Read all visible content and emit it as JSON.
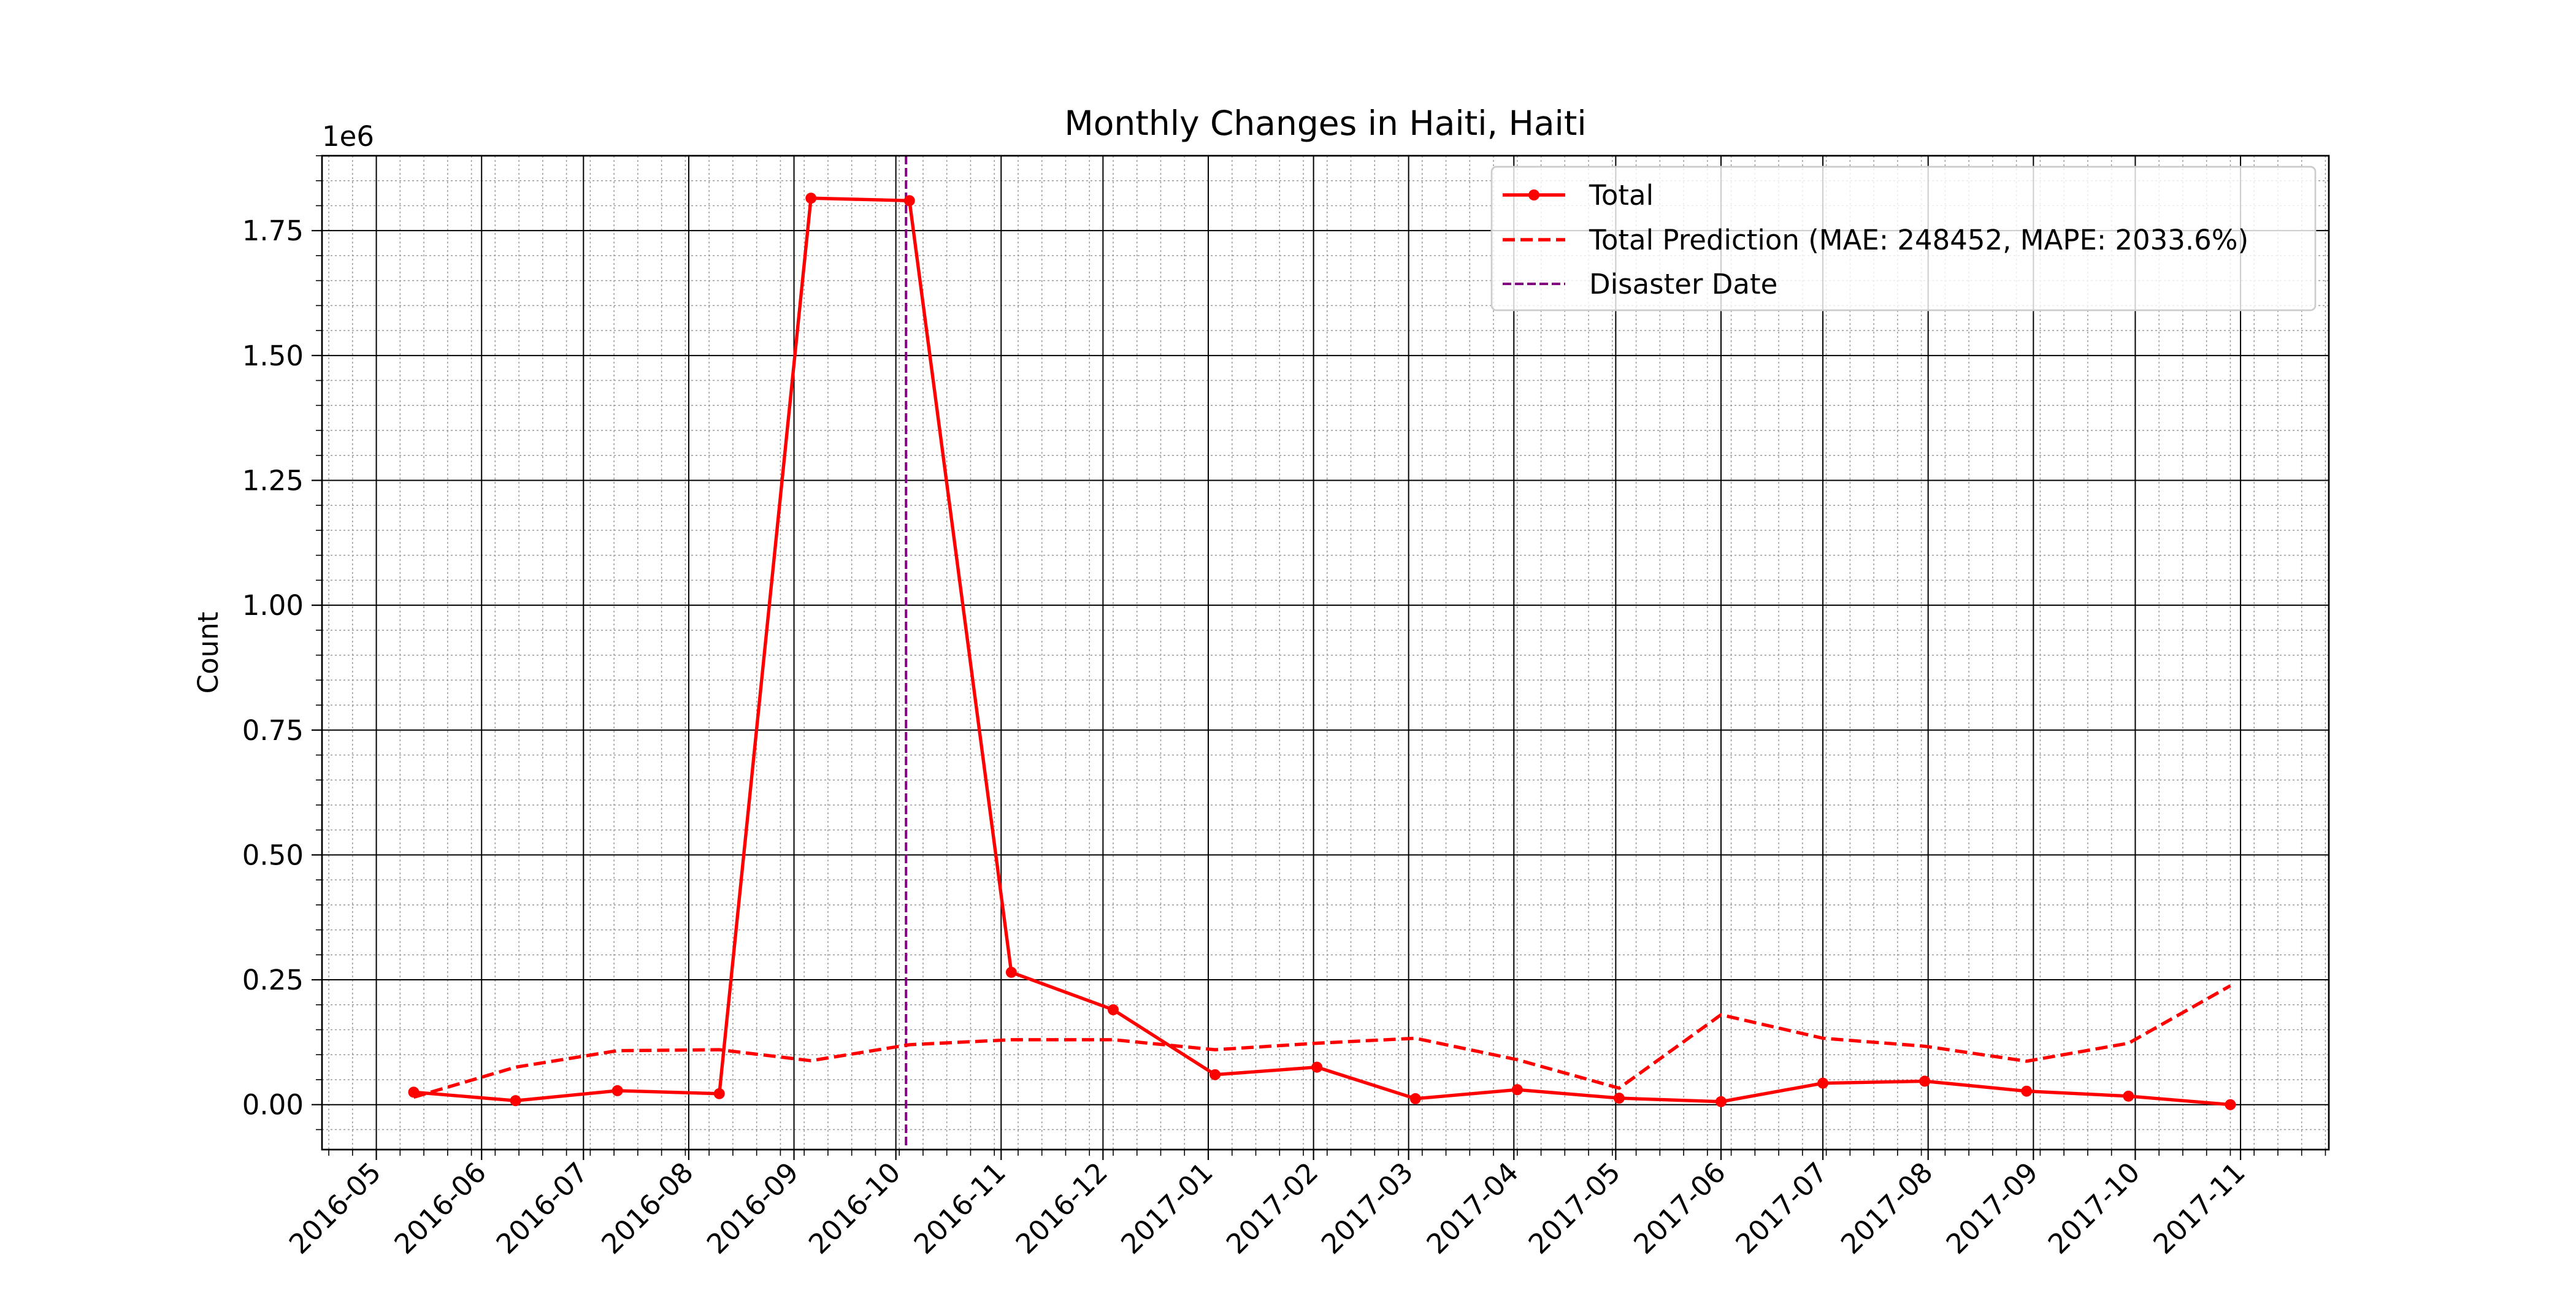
{
  "chart_data": {
    "type": "line",
    "title": "Monthly Changes in Haiti, Haiti",
    "xlabel": "",
    "ylabel": "Count",
    "y_offset_label": "1e6",
    "y_multiplier": 1000000,
    "ylim": [
      -0.09,
      1.9
    ],
    "xlim": [
      "2016-04-15",
      "2017-11-27"
    ],
    "y_ticks": [
      0.0,
      0.25,
      0.5,
      0.75,
      1.0,
      1.25,
      1.5,
      1.75
    ],
    "y_tick_labels": [
      "0.00",
      "0.25",
      "0.50",
      "0.75",
      "1.00",
      "1.25",
      "1.50",
      "1.75"
    ],
    "x_ticks": [
      "2016-05-01",
      "2016-06-01",
      "2016-07-01",
      "2016-08-01",
      "2016-09-01",
      "2016-10-01",
      "2016-11-01",
      "2016-12-01",
      "2017-01-01",
      "2017-02-01",
      "2017-03-01",
      "2017-04-01",
      "2017-05-01",
      "2017-06-01",
      "2017-07-01",
      "2017-08-01",
      "2017-09-01",
      "2017-10-01",
      "2017-11-01"
    ],
    "x_tick_labels": [
      "2016-05",
      "2016-06",
      "2016-07",
      "2016-08",
      "2016-09",
      "2016-10",
      "2016-11",
      "2016-12",
      "2017-01",
      "2017-02",
      "2017-03",
      "2017-04",
      "2017-05",
      "2017-06",
      "2017-07",
      "2017-08",
      "2017-09",
      "2017-10",
      "2017-11"
    ],
    "grid": true,
    "minor_grid": true,
    "legend_position": "top-right",
    "disaster": {
      "name": "Disaster Date",
      "date": "2016-10-04",
      "color": "#800080"
    },
    "series": [
      {
        "name": "Total",
        "style": "solid-markers",
        "color": "#ff0000",
        "points": [
          [
            "2016-05-12",
            0.025
          ],
          [
            "2016-06-11",
            0.008
          ],
          [
            "2016-07-11",
            0.028
          ],
          [
            "2016-08-10",
            0.022
          ],
          [
            "2016-09-06",
            1.815
          ],
          [
            "2016-10-05",
            1.81
          ],
          [
            "2016-11-04",
            0.265
          ],
          [
            "2016-12-04",
            0.19
          ],
          [
            "2017-01-03",
            0.06
          ],
          [
            "2017-02-02",
            0.075
          ],
          [
            "2017-03-03",
            0.012
          ],
          [
            "2017-04-02",
            0.03
          ],
          [
            "2017-05-02",
            0.013
          ],
          [
            "2017-06-01",
            0.006
          ],
          [
            "2017-07-01",
            0.043
          ],
          [
            "2017-07-31",
            0.047
          ],
          [
            "2017-08-30",
            0.027
          ],
          [
            "2017-09-29",
            0.017
          ],
          [
            "2017-10-29",
            0.0
          ]
        ]
      },
      {
        "name": "Total Prediction (MAE: 248452, MAPE: 2033.6%)",
        "style": "dashed",
        "color": "#ff0000",
        "points": [
          [
            "2016-05-12",
            0.015
          ],
          [
            "2016-06-11",
            0.075
          ],
          [
            "2016-07-11",
            0.108
          ],
          [
            "2016-08-10",
            0.11
          ],
          [
            "2016-09-06",
            0.088
          ],
          [
            "2016-10-05",
            0.12
          ],
          [
            "2016-11-04",
            0.13
          ],
          [
            "2016-12-04",
            0.13
          ],
          [
            "2017-01-03",
            0.11
          ],
          [
            "2017-02-02",
            0.123
          ],
          [
            "2017-03-03",
            0.133
          ],
          [
            "2017-04-02",
            0.09
          ],
          [
            "2017-05-02",
            0.033
          ],
          [
            "2017-06-01",
            0.18
          ],
          [
            "2017-07-01",
            0.133
          ],
          [
            "2017-07-31",
            0.117
          ],
          [
            "2017-08-30",
            0.087
          ],
          [
            "2017-09-29",
            0.123
          ],
          [
            "2017-10-29",
            0.238
          ]
        ]
      }
    ]
  }
}
